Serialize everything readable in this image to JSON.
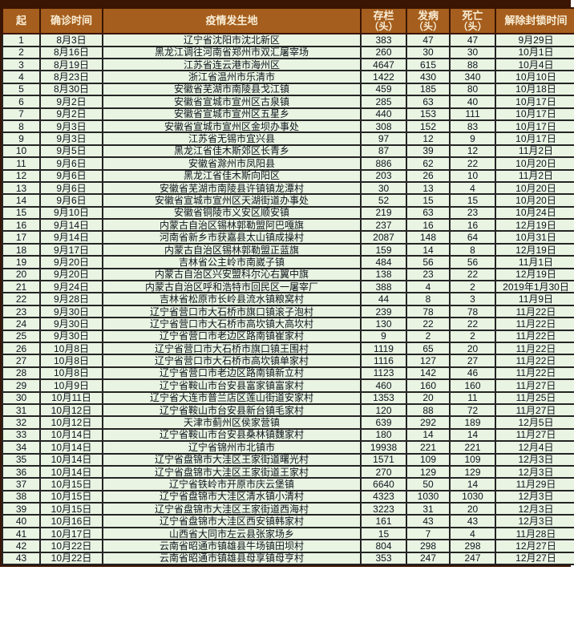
{
  "colors": {
    "frame_border": "#3b1503",
    "header_bg": "#a55e1d",
    "header_text": "#f9eed6",
    "row_bg": "#e9f4e3",
    "row_text": "#10151d",
    "grid_line": "#242424"
  },
  "chart_data": {
    "type": "table",
    "title": "",
    "columns": [
      {
        "label": "起",
        "sub": ""
      },
      {
        "label": "确诊时间",
        "sub": ""
      },
      {
        "label": "疫情发生地",
        "sub": ""
      },
      {
        "label": "存栏",
        "sub": "（头）"
      },
      {
        "label": "发病",
        "sub": "（头）"
      },
      {
        "label": "死亡",
        "sub": "（头）"
      },
      {
        "label": "解除封锁时间",
        "sub": ""
      }
    ],
    "rows": [
      [
        "1",
        "8月3日",
        "辽宁省沈阳市沈北新区",
        "383",
        "47",
        "47",
        "9月29日"
      ],
      [
        "2",
        "8月16日",
        "黑龙江调往河南省郑州市双汇屠宰场",
        "260",
        "30",
        "30",
        "10月1日"
      ],
      [
        "3",
        "8月19日",
        "江苏省连云港市海州区",
        "4647",
        "615",
        "88",
        "10月4日"
      ],
      [
        "4",
        "8月23日",
        "浙江省温州市乐清市",
        "1422",
        "430",
        "340",
        "10月10日"
      ],
      [
        "5",
        "8月30日",
        "安徽省芜湖市南陵县戈江镇",
        "459",
        "185",
        "80",
        "10月18日"
      ],
      [
        "6",
        "9月2日",
        "安徽省宣城市宣州区古泉镇",
        "285",
        "63",
        "40",
        "10月17日"
      ],
      [
        "7",
        "9月2日",
        "安徽省宣城市宣州区五星乡",
        "440",
        "153",
        "111",
        "10月17日"
      ],
      [
        "8",
        "9月3日",
        "安徽省宣城市宣州区金坝办事处",
        "308",
        "152",
        "83",
        "10月17日"
      ],
      [
        "9",
        "9月3日",
        "江苏省无锡市宜兴县",
        "97",
        "12",
        "9",
        "10月17日"
      ],
      [
        "10",
        "9月5日",
        "黑龙江省佳木斯郊区长青乡",
        "87",
        "39",
        "12",
        "11月2日"
      ],
      [
        "11",
        "9月6日",
        "安徽省滁州市凤阳县",
        "886",
        "62",
        "22",
        "10月20日"
      ],
      [
        "12",
        "9月6日",
        "黑龙江省佳木斯向阳区",
        "203",
        "26",
        "10",
        "11月2日"
      ],
      [
        "13",
        "9月6日",
        "安徽省芜湖市南陵县许镇镇龙潭村",
        "30",
        "13",
        "4",
        "10月20日"
      ],
      [
        "14",
        "9月6日",
        "安徽省宣城市宣州区天湖街道办事处",
        "52",
        "15",
        "15",
        "10月20日"
      ],
      [
        "15",
        "9月10日",
        "安徽省铜陵市义安区顺安镇",
        "219",
        "63",
        "23",
        "10月24日"
      ],
      [
        "16",
        "9月14日",
        "内蒙古自治区锡林郭勒盟阿巴嘎旗",
        "237",
        "16",
        "16",
        "12月19日"
      ],
      [
        "17",
        "9月14日",
        "河南省新乡市获嘉县太山镇成操村",
        "2087",
        "148",
        "64",
        "10月31日"
      ],
      [
        "18",
        "9月17日",
        "内蒙古自治区锡林郭勒盟正蓝旗",
        "159",
        "14",
        "8",
        "12月19日"
      ],
      [
        "19",
        "9月20日",
        "吉林省公主岭市南崴子镇",
        "484",
        "56",
        "56",
        "11月1日"
      ],
      [
        "20",
        "9月20日",
        "内蒙古自治区兴安盟科尔沁右翼中旗",
        "138",
        "23",
        "22",
        "12月19日"
      ],
      [
        "21",
        "9月24日",
        "内蒙古自治区呼和浩特市回民区一屠宰厂",
        "388",
        "4",
        "2",
        "2019年1月30日"
      ],
      [
        "22",
        "9月28日",
        "吉林省松原市长岭县流水镇粮窝村",
        "44",
        "8",
        "3",
        "11月9日"
      ],
      [
        "23",
        "9月30日",
        "辽宁省营口市大石桥市旗口镇滚子泡村",
        "239",
        "78",
        "78",
        "11月22日"
      ],
      [
        "24",
        "9月30日",
        "辽宁省营口市大石桥市高坎镇大高坎村",
        "130",
        "22",
        "22",
        "11月22日"
      ],
      [
        "25",
        "9月30日",
        "辽宁省营口市老边区路南镇崔家村",
        "9",
        "2",
        "2",
        "11月22日"
      ],
      [
        "26",
        "10月8日",
        "辽宁省营口市大石桥市旗口镇王围村",
        "1119",
        "65",
        "20",
        "11月22日"
      ],
      [
        "27",
        "10月8日",
        "辽宁省营口市大石桥市高坎镇单家村",
        "1116",
        "127",
        "27",
        "11月22日"
      ],
      [
        "28",
        "10月8日",
        "辽宁省营口市老边区路南镇新立村",
        "1123",
        "142",
        "46",
        "11月22日"
      ],
      [
        "29",
        "10月9日",
        "辽宁省鞍山市台安县富家镇富家村",
        "460",
        "160",
        "160",
        "11月27日"
      ],
      [
        "30",
        "10月11日",
        "辽宁省大连市普兰店区莲山街道安家村",
        "1353",
        "20",
        "11",
        "11月25日"
      ],
      [
        "31",
        "10月12日",
        "辽宁省鞍山市台安县新台镇毛家村",
        "120",
        "88",
        "72",
        "11月27日"
      ],
      [
        "32",
        "10月12日",
        "天津市蓟州区侯家营镇",
        "639",
        "292",
        "189",
        "12月5日"
      ],
      [
        "33",
        "10月14日",
        "辽宁省鞍山市台安县桑林镇魏家村",
        "180",
        "14",
        "14",
        "11月27日"
      ],
      [
        "34",
        "10月14日",
        "辽宁省锦州市北镇市",
        "19938",
        "221",
        "221",
        "12月4日"
      ],
      [
        "35",
        "10月14日",
        "辽宁省盘锦市大洼区王家街道曙光村",
        "1571",
        "109",
        "109",
        "12月3日"
      ],
      [
        "36",
        "10月14日",
        "辽宁省盘锦市大洼区王家街道王家村",
        "270",
        "129",
        "129",
        "12月3日"
      ],
      [
        "37",
        "10月15日",
        "辽宁省铁岭市开原市庆云堡镇",
        "6640",
        "50",
        "14",
        "11月29日"
      ],
      [
        "38",
        "10月15日",
        "辽宁省盘锦市大洼区清水镇小清村",
        "4323",
        "1030",
        "1030",
        "12月3日"
      ],
      [
        "39",
        "10月15日",
        "辽宁省盘锦市大洼区王家街道西海村",
        "3223",
        "31",
        "20",
        "12月3日"
      ],
      [
        "40",
        "10月16日",
        "辽宁省盘锦市大洼区西安镇韩家村",
        "161",
        "43",
        "43",
        "12月3日"
      ],
      [
        "41",
        "10月17日",
        "山西省大同市左云县张家场乡",
        "15",
        "7",
        "4",
        "11月28日"
      ],
      [
        "42",
        "10月22日",
        "云南省昭通市镇雄县牛场镇田坝村",
        "804",
        "298",
        "298",
        "12月27日"
      ],
      [
        "43",
        "10月22日",
        "云南省昭通市镇雄县母享镇母亨村",
        "353",
        "247",
        "247",
        "12月27日"
      ]
    ]
  }
}
